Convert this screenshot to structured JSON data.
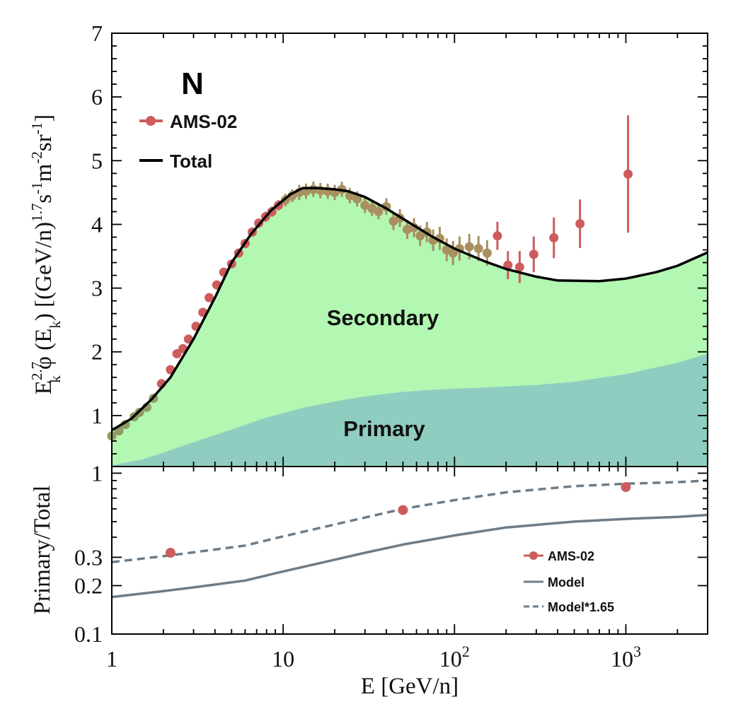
{
  "chart_data": [
    {
      "type": "area",
      "panel": "upper",
      "title_label": "N",
      "ylabel": "E_k^{2.7} φ (E_k) [(GeV/n)^{1.7} s^{-1} m^{-2} sr^{-1}]",
      "ylabel_parts": {
        "e": "E",
        "e_sup": "2.7",
        "e_sub": "k",
        "phi": " φ (E",
        "phi_sub": "k",
        "units_open": ") [(GeV/n)",
        "units_sup1": "1.7",
        "s": "s",
        "s_sup": "-1",
        "m": "m",
        "m_sup": "-2",
        "sr": "sr",
        "sr_sup": "-1",
        "close": "]"
      },
      "xscale": "log",
      "xlim": [
        1,
        3000
      ],
      "ylim": [
        0.2,
        7
      ],
      "yticks": [
        1,
        2,
        3,
        4,
        5,
        6,
        7
      ],
      "ytick_labels": [
        "1",
        "2",
        "3",
        "4",
        "5",
        "6",
        "7"
      ],
      "region_labels": {
        "secondary": "Secondary",
        "primary": "Primary"
      },
      "legend": {
        "placement": "top-left",
        "entries": [
          "AMS-02",
          "Total"
        ]
      },
      "colors": {
        "data": "#cd5c5c",
        "total": "#000000",
        "secondary_fill": "#b2f7b2",
        "primary_fill": "#8fcdc0"
      },
      "series": [
        {
          "name": "Total",
          "x": [
            1,
            1.3,
            1.7,
            2.2,
            3,
            4,
            5,
            6.5,
            8.5,
            11,
            13,
            16,
            20,
            24,
            30,
            40,
            55,
            75,
            100,
            150,
            200,
            300,
            400,
            700,
            1000,
            1500,
            2000,
            3000
          ],
          "y": [
            0.77,
            0.95,
            1.25,
            1.6,
            2.2,
            2.85,
            3.4,
            3.85,
            4.22,
            4.47,
            4.57,
            4.57,
            4.55,
            4.52,
            4.43,
            4.25,
            4.02,
            3.8,
            3.62,
            3.42,
            3.3,
            3.18,
            3.12,
            3.11,
            3.15,
            3.25,
            3.35,
            3.56
          ]
        },
        {
          "name": "Primary",
          "x": [
            1,
            1.5,
            2,
            3,
            5,
            8,
            13,
            20,
            30,
            50,
            80,
            150,
            300,
            500,
            1000,
            2000,
            3000
          ],
          "y": [
            0.22,
            0.31,
            0.42,
            0.58,
            0.78,
            0.97,
            1.12,
            1.22,
            1.3,
            1.37,
            1.41,
            1.44,
            1.48,
            1.53,
            1.65,
            1.83,
            1.97
          ]
        },
        {
          "name": "AMS-02",
          "points": [
            {
              "x": 1.0,
              "y": 0.68,
              "err": 0.04
            },
            {
              "x": 1.1,
              "y": 0.76,
              "err": 0.04
            },
            {
              "x": 1.2,
              "y": 0.86,
              "err": 0.04
            },
            {
              "x": 1.35,
              "y": 0.98,
              "err": 0.04
            },
            {
              "x": 1.45,
              "y": 1.05,
              "err": 0.04
            },
            {
              "x": 1.6,
              "y": 1.13,
              "err": 0.04
            },
            {
              "x": 1.75,
              "y": 1.27,
              "err": 0.05
            },
            {
              "x": 1.95,
              "y": 1.5,
              "err": 0.05
            },
            {
              "x": 2.2,
              "y": 1.72,
              "err": 0.05
            },
            {
              "x": 2.4,
              "y": 1.97,
              "err": 0.05
            },
            {
              "x": 2.6,
              "y": 2.05,
              "err": 0.05
            },
            {
              "x": 2.8,
              "y": 2.2,
              "err": 0.05
            },
            {
              "x": 3.1,
              "y": 2.4,
              "err": 0.05
            },
            {
              "x": 3.4,
              "y": 2.62,
              "err": 0.05
            },
            {
              "x": 3.7,
              "y": 2.85,
              "err": 0.06
            },
            {
              "x": 4.1,
              "y": 3.05,
              "err": 0.06
            },
            {
              "x": 4.5,
              "y": 3.25,
              "err": 0.06
            },
            {
              "x": 5.0,
              "y": 3.38,
              "err": 0.06
            },
            {
              "x": 5.5,
              "y": 3.55,
              "err": 0.06
            },
            {
              "x": 6.0,
              "y": 3.7,
              "err": 0.07
            },
            {
              "x": 6.6,
              "y": 3.88,
              "err": 0.07
            },
            {
              "x": 7.2,
              "y": 4.02,
              "err": 0.07
            },
            {
              "x": 7.9,
              "y": 4.12,
              "err": 0.08
            },
            {
              "x": 8.6,
              "y": 4.2,
              "err": 0.08
            },
            {
              "x": 9.4,
              "y": 4.3,
              "err": 0.08
            },
            {
              "x": 10.3,
              "y": 4.38,
              "err": 0.1
            },
            {
              "x": 11.3,
              "y": 4.45,
              "err": 0.1
            },
            {
              "x": 12.4,
              "y": 4.5,
              "err": 0.12
            },
            {
              "x": 13.6,
              "y": 4.52,
              "err": 0.12
            },
            {
              "x": 15.0,
              "y": 4.55,
              "err": 0.12
            },
            {
              "x": 16.5,
              "y": 4.53,
              "err": 0.12
            },
            {
              "x": 18.2,
              "y": 4.52,
              "err": 0.12
            },
            {
              "x": 20.0,
              "y": 4.5,
              "err": 0.12
            },
            {
              "x": 22.0,
              "y": 4.55,
              "err": 0.12
            },
            {
              "x": 24.5,
              "y": 4.45,
              "err": 0.12
            },
            {
              "x": 27.0,
              "y": 4.4,
              "err": 0.12
            },
            {
              "x": 30.0,
              "y": 4.3,
              "err": 0.12
            },
            {
              "x": 33.0,
              "y": 4.25,
              "err": 0.12
            },
            {
              "x": 36.0,
              "y": 4.2,
              "err": 0.12
            },
            {
              "x": 40.0,
              "y": 4.28,
              "err": 0.13
            },
            {
              "x": 44.0,
              "y": 4.05,
              "err": 0.14
            },
            {
              "x": 48.0,
              "y": 4.1,
              "err": 0.14
            },
            {
              "x": 53.0,
              "y": 3.92,
              "err": 0.15
            },
            {
              "x": 58.0,
              "y": 3.95,
              "err": 0.15
            },
            {
              "x": 63.0,
              "y": 3.82,
              "err": 0.16
            },
            {
              "x": 69.0,
              "y": 3.88,
              "err": 0.16
            },
            {
              "x": 75.0,
              "y": 3.75,
              "err": 0.17
            },
            {
              "x": 82.0,
              "y": 3.78,
              "err": 0.18
            },
            {
              "x": 90.0,
              "y": 3.6,
              "err": 0.18
            },
            {
              "x": 98.0,
              "y": 3.55,
              "err": 0.19
            },
            {
              "x": 107.0,
              "y": 3.62,
              "err": 0.19
            },
            {
              "x": 122.0,
              "y": 3.65,
              "err": 0.2
            },
            {
              "x": 138.0,
              "y": 3.62,
              "err": 0.2
            },
            {
              "x": 155.0,
              "y": 3.55,
              "err": 0.2
            },
            {
              "x": 178.0,
              "y": 3.82,
              "err": 0.22
            },
            {
              "x": 205.0,
              "y": 3.36,
              "err": 0.22
            },
            {
              "x": 240.0,
              "y": 3.33,
              "err": 0.25
            },
            {
              "x": 290.0,
              "y": 3.53,
              "err": 0.28
            },
            {
              "x": 380.0,
              "y": 3.79,
              "err": 0.32
            },
            {
              "x": 540.0,
              "y": 4.01,
              "err": 0.38
            },
            {
              "x": 1030.0,
              "y": 4.79,
              "err": 0.92
            }
          ]
        }
      ]
    },
    {
      "type": "line",
      "panel": "lower",
      "ylabel": "Primary/Total",
      "xlabel_parts": {
        "e": "E",
        "units": " [GeV/n]"
      },
      "xscale": "log",
      "yscale": "log",
      "xlim": [
        1,
        3000
      ],
      "ylim": [
        0.1,
        1.1
      ],
      "xticks": [
        1,
        10,
        100,
        1000
      ],
      "xtick_labels": [
        {
          "base": "1",
          "exp": ""
        },
        {
          "base": "10",
          "exp": ""
        },
        {
          "base": "10",
          "exp": "2"
        },
        {
          "base": "10",
          "exp": "3"
        }
      ],
      "yticks": [
        0.1,
        0.2,
        0.3,
        1
      ],
      "ytick_labels": [
        "0.1",
        "0.2",
        "0.3",
        "1"
      ],
      "legend": {
        "placement": "bottom-right",
        "entries": [
          "AMS-02",
          "Model",
          "Model*1.65"
        ]
      },
      "colors": {
        "data": "#cd5c5c",
        "model": "#6e7c87"
      },
      "series": [
        {
          "name": "Model",
          "style": "solid",
          "x": [
            1,
            2,
            3,
            6,
            10,
            20,
            30,
            50,
            100,
            200,
            500,
            1000,
            2000,
            3000
          ],
          "y": [
            0.17,
            0.185,
            0.195,
            0.215,
            0.245,
            0.29,
            0.32,
            0.36,
            0.41,
            0.46,
            0.5,
            0.52,
            0.535,
            0.55
          ]
        },
        {
          "name": "Model*1.65",
          "style": "dashed",
          "x": [
            1,
            2,
            3,
            6,
            10,
            20,
            30,
            50,
            100,
            200,
            500,
            1000,
            2000,
            3000
          ],
          "y": [
            0.28,
            0.305,
            0.322,
            0.355,
            0.405,
            0.48,
            0.53,
            0.6,
            0.68,
            0.76,
            0.83,
            0.86,
            0.88,
            0.9
          ]
        },
        {
          "name": "AMS-02",
          "points": [
            {
              "x": 2.2,
              "y": 0.32
            },
            {
              "x": 50,
              "y": 0.59
            },
            {
              "x": 1000,
              "y": 0.82
            }
          ]
        }
      ]
    }
  ]
}
